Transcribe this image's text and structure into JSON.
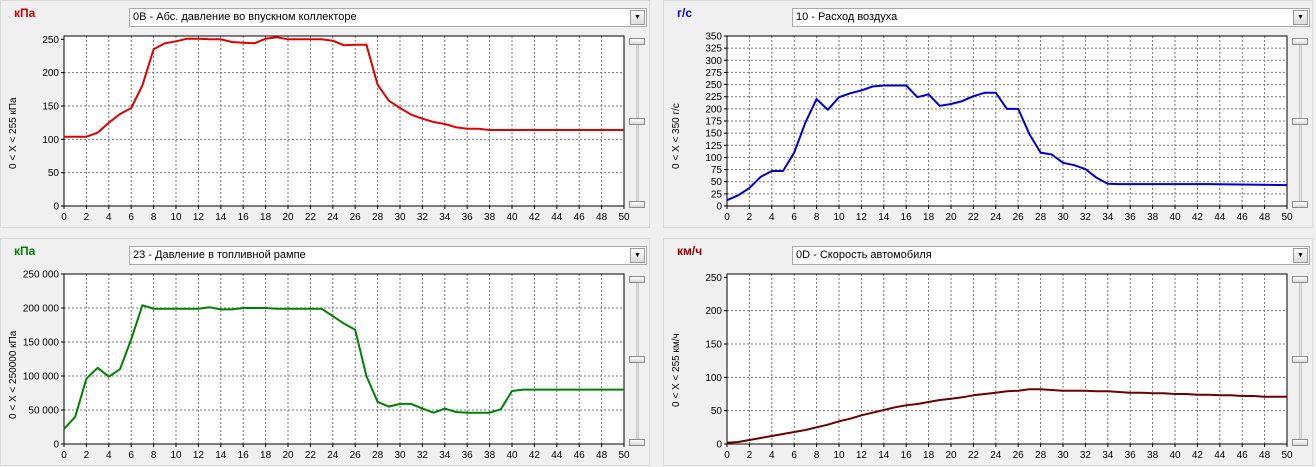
{
  "panels": [
    {
      "unit": "кПа",
      "unit_color": "#cc0000",
      "sensor": "0B - Абс. давление во впускном коллекторе",
      "range_label": "0   < X <   255  кПа",
      "chart_data": {
        "type": "line",
        "color": "#e00000",
        "xlim": [
          0,
          50
        ],
        "ylim": [
          0,
          255
        ],
        "x_ticks": [
          0,
          2,
          4,
          6,
          8,
          10,
          12,
          14,
          16,
          18,
          20,
          22,
          24,
          26,
          28,
          30,
          32,
          34,
          36,
          38,
          40,
          42,
          44,
          46,
          48,
          50
        ],
        "y_ticks": [
          0,
          50,
          100,
          150,
          200,
          250
        ],
        "y_tick_labels": [
          "0",
          "50",
          "100",
          "150",
          "200",
          "250"
        ],
        "x": [
          0,
          2,
          3,
          4,
          5,
          6,
          7,
          8,
          9,
          10,
          11,
          12,
          13,
          14,
          15,
          16,
          17,
          18,
          19,
          20,
          21,
          22,
          23,
          24,
          25,
          26,
          27,
          28,
          29,
          30,
          31,
          32,
          33,
          34,
          35,
          36,
          37,
          38,
          40,
          45,
          50
        ],
        "y": [
          104,
          104,
          110,
          125,
          138,
          147,
          181,
          235,
          244,
          247,
          251,
          251,
          250,
          250,
          246,
          245,
          244,
          251,
          253,
          250,
          250,
          250,
          250,
          248,
          241,
          242,
          242,
          182,
          158,
          147,
          137,
          131,
          126,
          123,
          118,
          116,
          116,
          114,
          114,
          114,
          114
        ]
      }
    },
    {
      "unit": "г/с",
      "unit_color": "#0000cc",
      "sensor": "10 - Расход воздуха",
      "range_label": "0   < X <   350  г/с",
      "chart_data": {
        "type": "line",
        "color": "#0000cc",
        "xlim": [
          0,
          50
        ],
        "ylim": [
          0,
          350
        ],
        "x_ticks": [
          0,
          2,
          4,
          6,
          8,
          10,
          12,
          14,
          16,
          18,
          20,
          22,
          24,
          26,
          28,
          30,
          32,
          34,
          36,
          38,
          40,
          42,
          44,
          46,
          48,
          50
        ],
        "y_ticks": [
          0,
          25,
          50,
          75,
          100,
          125,
          150,
          175,
          200,
          225,
          250,
          275,
          300,
          325,
          350
        ],
        "y_tick_labels": [
          "0",
          "25",
          "50",
          "75",
          "100",
          "125",
          "150",
          "175",
          "200",
          "225",
          "250",
          "275",
          "300",
          "325",
          "350"
        ],
        "x": [
          0,
          1,
          2,
          3,
          4,
          5,
          6,
          7,
          8,
          9,
          10,
          11,
          12,
          13,
          14,
          15,
          16,
          17,
          18,
          19,
          20,
          21,
          22,
          23,
          24,
          25,
          26,
          27,
          28,
          29,
          30,
          31,
          32,
          33,
          34,
          35,
          43,
          50
        ],
        "y": [
          12,
          22,
          37,
          60,
          72,
          72,
          110,
          172,
          220,
          198,
          224,
          232,
          238,
          246,
          248,
          248,
          248,
          224,
          230,
          206,
          210,
          216,
          226,
          233,
          233,
          200,
          200,
          148,
          110,
          106,
          89,
          84,
          76,
          58,
          46,
          45,
          45,
          43
        ]
      }
    },
    {
      "unit": "кПа",
      "unit_color": "#008000",
      "sensor": "23 - Давление в топливной рампе",
      "range_label": "0   < X <   250000  кПа",
      "chart_data": {
        "type": "line",
        "color": "#008000",
        "xlim": [
          0,
          50
        ],
        "ylim": [
          0,
          250000
        ],
        "x_ticks": [
          0,
          2,
          4,
          6,
          8,
          10,
          12,
          14,
          16,
          18,
          20,
          22,
          24,
          26,
          28,
          30,
          32,
          34,
          36,
          38,
          40,
          42,
          44,
          46,
          48,
          50
        ],
        "y_ticks": [
          0,
          50000,
          100000,
          150000,
          200000,
          250000
        ],
        "y_tick_labels": [
          "0",
          "50 000",
          "100 000",
          "150 000",
          "200 000",
          "250 000"
        ],
        "x": [
          0,
          1,
          2,
          3,
          4,
          5,
          6,
          7,
          8,
          9,
          10,
          11,
          12,
          13,
          14,
          15,
          16,
          17,
          18,
          19,
          20,
          21,
          22,
          23,
          24,
          25,
          26,
          27,
          28,
          29,
          30,
          31,
          32,
          33,
          34,
          35,
          36,
          37,
          38,
          39,
          40,
          41,
          50
        ],
        "y": [
          22000,
          40000,
          96000,
          112000,
          99000,
          110000,
          154000,
          204000,
          199000,
          199000,
          199000,
          199000,
          199000,
          201000,
          198000,
          198000,
          200000,
          200000,
          200000,
          199000,
          199000,
          199000,
          199000,
          199000,
          188000,
          177000,
          168000,
          100000,
          62000,
          55000,
          59000,
          59000,
          52000,
          46000,
          52000,
          47000,
          46000,
          46000,
          46000,
          51000,
          78000,
          80000,
          80000
        ]
      }
    },
    {
      "unit": "км/ч",
      "unit_color": "#880000",
      "sensor": "0D - Скорость автомобиля",
      "range_label": "0   < X <   255  км/ч",
      "chart_data": {
        "type": "line",
        "color": "#6b0000",
        "xlim": [
          0,
          50
        ],
        "ylim": [
          0,
          255
        ],
        "x_ticks": [
          0,
          2,
          4,
          6,
          8,
          10,
          12,
          14,
          16,
          18,
          20,
          22,
          24,
          26,
          28,
          30,
          32,
          34,
          36,
          38,
          40,
          42,
          44,
          46,
          48,
          50
        ],
        "y_ticks": [
          0,
          50,
          100,
          150,
          200,
          250
        ],
        "y_tick_labels": [
          "0",
          "50",
          "100",
          "150",
          "200",
          "250"
        ],
        "x": [
          0,
          1,
          2,
          3,
          4,
          5,
          6,
          7,
          8,
          9,
          10,
          11,
          12,
          13,
          14,
          15,
          16,
          17,
          18,
          19,
          20,
          21,
          22,
          23,
          24,
          25,
          26,
          27,
          28,
          29,
          30,
          31,
          32,
          33,
          34,
          35,
          36,
          37,
          38,
          39,
          40,
          41,
          42,
          43,
          44,
          45,
          46,
          47,
          48,
          49,
          50
        ],
        "y": [
          2,
          3,
          6,
          9,
          12,
          15,
          18,
          21,
          25,
          29,
          34,
          38,
          43,
          47,
          51,
          55,
          58,
          60,
          63,
          66,
          68,
          70,
          73,
          75,
          77,
          79,
          80,
          82,
          82,
          81,
          80,
          80,
          80,
          79,
          79,
          78,
          77,
          77,
          76,
          76,
          75,
          75,
          74,
          74,
          73,
          73,
          72,
          72,
          71,
          71,
          71
        ]
      }
    }
  ]
}
